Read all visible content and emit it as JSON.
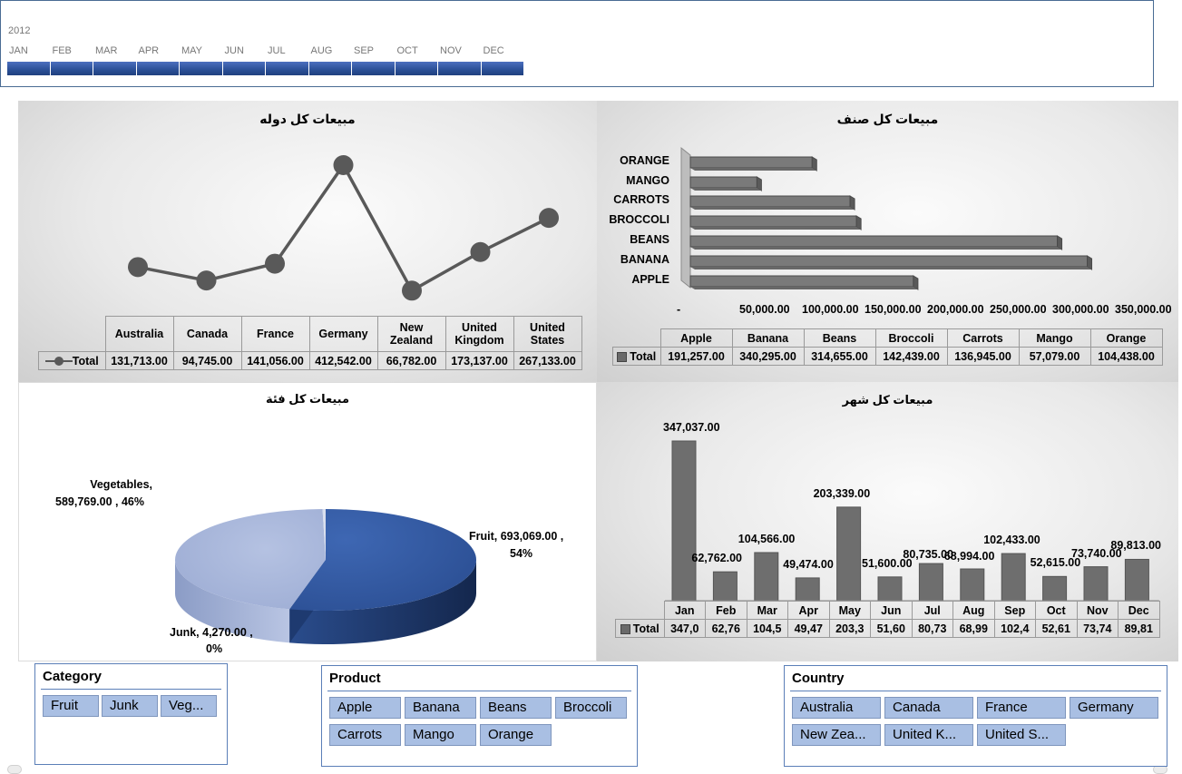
{
  "timeline": {
    "year": "2012",
    "months": [
      "JAN",
      "FEB",
      "MAR",
      "APR",
      "MAY",
      "JUN",
      "JUL",
      "AUG",
      "SEP",
      "OCT",
      "NOV",
      "DEC"
    ]
  },
  "country_chart": {
    "title": "مبيعات كل دوله",
    "series_label": "Total",
    "categories": [
      "Australia",
      "Canada",
      "France",
      "Germany",
      "New Zealand",
      "United Kingdom",
      "United States"
    ],
    "header_lines": [
      [
        "Australia"
      ],
      [
        "Canada"
      ],
      [
        "France"
      ],
      [
        "Germany"
      ],
      [
        "New",
        "Zealand"
      ],
      [
        "United",
        "Kingdom"
      ],
      [
        "United",
        "States"
      ]
    ],
    "values_text": [
      "131,713.00",
      "94,745.00",
      "141,056.00",
      "412,542.00",
      "66,782.00",
      "173,137.00",
      "267,133.00"
    ]
  },
  "product_chart": {
    "title": "مبيعات كل صنف",
    "series_label": "Total",
    "axis_labels": [
      "ORANGE",
      "MANGO",
      "CARROTS",
      "BROCCOLI",
      "BEANS",
      "BANANA",
      "APPLE"
    ],
    "x_ticks": [
      "-",
      "50,000.00",
      "100,000.00",
      "150,000.00",
      "200,000.00",
      "250,000.00",
      "300,000.00",
      "350,000.00"
    ],
    "categories": [
      "Apple",
      "Banana",
      "Beans",
      "Broccoli",
      "Carrots",
      "Mango",
      "Orange"
    ],
    "values_text": [
      "191,257.00",
      "340,295.00",
      "314,655.00",
      "142,439.00",
      "136,945.00",
      "57,079.00",
      "104,438.00"
    ]
  },
  "category_chart": {
    "title": "مبيعات كل فئة",
    "labels": [
      {
        "name": "Vegetables",
        "line1": "Vegetables,",
        "line2": "589,769.00 , 46%"
      },
      {
        "name": "Fruit",
        "line1": "Fruit,  693,069.00 ,",
        "line2": "54%"
      },
      {
        "name": "Junk",
        "line1": "Junk,  4,270.00 ,",
        "line2": "0%"
      }
    ]
  },
  "month_chart": {
    "title": "مبيعات كل شهر",
    "series_label": "Total",
    "categories": [
      "Jan",
      "Feb",
      "Mar",
      "Apr",
      "May",
      "Jun",
      "Jul",
      "Aug",
      "Sep",
      "Oct",
      "Nov",
      "Dec"
    ],
    "data_labels": [
      "347,037.00",
      "62,762.00",
      "104,566.00",
      "49,474.00",
      "203,339.00",
      "51,600.00",
      "80,735.00",
      "68,994.00",
      "102,433.00",
      "52,615.00",
      "73,740.00",
      "89,813.00"
    ],
    "table_values": [
      "347,0",
      "62,76",
      "104,5",
      "49,47",
      "203,3",
      "51,60",
      "80,73",
      "68,99",
      "102,4",
      "52,61",
      "73,74",
      "89,81"
    ]
  },
  "chart_data": [
    {
      "type": "line",
      "title": "مبيعات كل دوله",
      "categories": [
        "Australia",
        "Canada",
        "France",
        "Germany",
        "New Zealand",
        "United Kingdom",
        "United States"
      ],
      "series": [
        {
          "name": "Total",
          "values": [
            131713,
            94745,
            141056,
            412542,
            66782,
            173137,
            267133
          ]
        }
      ]
    },
    {
      "type": "bar",
      "title": "مبيعات كل صنف",
      "categories": [
        "Apple",
        "Banana",
        "Beans",
        "Broccoli",
        "Carrots",
        "Mango",
        "Orange"
      ],
      "series": [
        {
          "name": "Total",
          "values": [
            191257,
            340295,
            314655,
            142439,
            136945,
            57079,
            104438
          ]
        }
      ],
      "xlim": [
        0,
        350000
      ]
    },
    {
      "type": "pie",
      "title": "مبيعات كل فئة",
      "categories": [
        "Fruit",
        "Vegetables",
        "Junk"
      ],
      "values": [
        693069,
        589769,
        4270
      ],
      "percents": [
        54,
        46,
        0
      ]
    },
    {
      "type": "bar",
      "title": "مبيعات كل شهر",
      "categories": [
        "Jan",
        "Feb",
        "Mar",
        "Apr",
        "May",
        "Jun",
        "Jul",
        "Aug",
        "Sep",
        "Oct",
        "Nov",
        "Dec"
      ],
      "series": [
        {
          "name": "Total",
          "values": [
            347037,
            62762,
            104566,
            49474,
            203339,
            51600,
            80735,
            68994,
            102433,
            52615,
            73740,
            89813
          ]
        }
      ]
    }
  ],
  "slicers": {
    "category": {
      "title": "Category",
      "items": [
        "Fruit",
        "Junk",
        "Veg..."
      ]
    },
    "product": {
      "title": "Product",
      "items": [
        "Apple",
        "Banana",
        "Beans",
        "Broccoli",
        "Carrots",
        "Mango",
        "Orange"
      ]
    },
    "country": {
      "title": "Country",
      "items": [
        "Australia",
        "Canada",
        "France",
        "Germany",
        "New Zea...",
        "United K...",
        "United S..."
      ]
    }
  },
  "colors": {
    "dark_blue": "#2f5597",
    "light_blue": "#a5b5d8",
    "slicer_btn": "#a9bfe3",
    "grey_marker": "#595959"
  }
}
